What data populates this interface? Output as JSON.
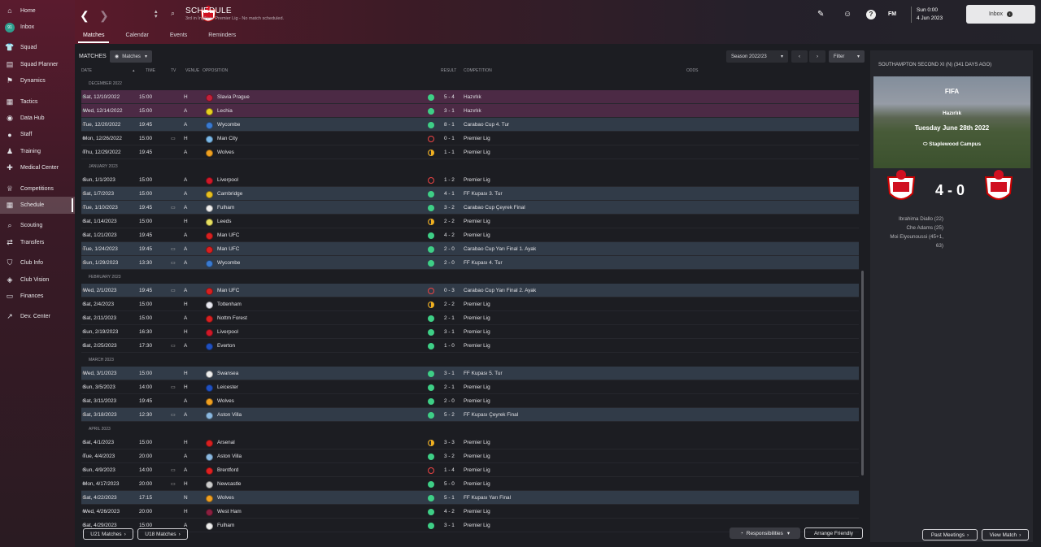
{
  "sidebar": {
    "items": [
      {
        "label": "Home",
        "icon": "home-icon",
        "glyph": "⌂"
      },
      {
        "label": "Inbox",
        "icon": "inbox-icon",
        "glyph": "91",
        "badge": true
      },
      {
        "label": "Squad",
        "icon": "squad-icon",
        "glyph": "👕"
      },
      {
        "label": "Squad Planner",
        "icon": "squad-planner-icon",
        "glyph": "▤"
      },
      {
        "label": "Dynamics",
        "icon": "dynamics-icon",
        "glyph": "⚑"
      },
      {
        "label": "Tactics",
        "icon": "tactics-icon",
        "glyph": "▦"
      },
      {
        "label": "Data Hub",
        "icon": "data-hub-icon",
        "glyph": "◉"
      },
      {
        "label": "Staff",
        "icon": "staff-icon",
        "glyph": "●"
      },
      {
        "label": "Training",
        "icon": "training-icon",
        "glyph": "♟"
      },
      {
        "label": "Medical Center",
        "icon": "medical-icon",
        "glyph": "✚"
      },
      {
        "label": "Competitions",
        "icon": "trophy-icon",
        "glyph": "♕"
      },
      {
        "label": "Schedule",
        "icon": "calendar-icon",
        "glyph": "▦",
        "active": true
      },
      {
        "label": "Scouting",
        "icon": "scouting-icon",
        "glyph": "⌕"
      },
      {
        "label": "Transfers",
        "icon": "transfers-icon",
        "glyph": "⇄"
      },
      {
        "label": "Club Info",
        "icon": "shield-icon",
        "glyph": "⛉"
      },
      {
        "label": "Club Vision",
        "icon": "vision-icon",
        "glyph": "◈"
      },
      {
        "label": "Finances",
        "icon": "finances-icon",
        "glyph": "▭"
      },
      {
        "label": "Dev. Center",
        "icon": "dev-center-icon",
        "glyph": "↗"
      }
    ]
  },
  "header": {
    "title": "SCHEDULE",
    "subtitle": "3rd in İngiltere Premier Lig - No match scheduled.",
    "tabs": [
      "Matches",
      "Calendar",
      "Events",
      "Reminders"
    ],
    "date_time": "Sun 0:00",
    "date": "4 Jun 2023",
    "inbox_label": "Inbox",
    "fm_label": "FM"
  },
  "toolbar": {
    "matches_label": "MATCHES",
    "matches_dropdown": "Matches",
    "season": "Season 2022/23",
    "filter": "Filter"
  },
  "columns": {
    "date": "DATE",
    "time": "TIME",
    "tv": "TV",
    "venue": "VENUE",
    "opposition": "OPPOSITION",
    "result": "RESULT",
    "competition": "COMPETITION",
    "odds": "ODDS"
  },
  "groups": [
    {
      "month": "DECEMBER 2022",
      "matches": [
        {
          "date": "Sat, 12/10/2022",
          "time": "15:00",
          "tv": false,
          "venue": "H",
          "opp": "Slavia Prague",
          "result": "5 - 4",
          "outcome": "win",
          "comp": "Hazırlık",
          "hl": "purple",
          "color": "#c4203a"
        },
        {
          "date": "Wed, 12/14/2022",
          "time": "15:00",
          "tv": false,
          "venue": "A",
          "opp": "Lechia",
          "result": "3 - 1",
          "outcome": "win",
          "comp": "Hazırlık",
          "hl": "purple",
          "color": "#e8d020"
        },
        {
          "date": "Tue, 12/20/2022",
          "time": "19:45",
          "tv": false,
          "venue": "A",
          "opp": "Wycombe",
          "result": "8 - 1",
          "outcome": "win",
          "comp": "Carabao Cup 4. Tur",
          "hl": "blue",
          "color": "#3a7ad0"
        },
        {
          "date": "Mon, 12/26/2022",
          "time": "15:00",
          "tv": true,
          "venue": "H",
          "opp": "Man City",
          "result": "0 - 1",
          "outcome": "loss",
          "comp": "Premier Lig",
          "hl": "",
          "color": "#7ab8e8"
        },
        {
          "date": "Thu, 12/29/2022",
          "time": "19:45",
          "tv": false,
          "venue": "A",
          "opp": "Wolves",
          "result": "1 - 1",
          "outcome": "draw",
          "comp": "Premier Lig",
          "hl": "",
          "color": "#f0a020"
        }
      ]
    },
    {
      "month": "JANUARY 2023",
      "matches": [
        {
          "date": "Sun, 1/1/2023",
          "time": "15:00",
          "tv": false,
          "venue": "A",
          "opp": "Liverpool",
          "result": "1 - 2",
          "outcome": "loss",
          "comp": "Premier Lig",
          "hl": "",
          "color": "#d01828"
        },
        {
          "date": "Sat, 1/7/2023",
          "time": "15:00",
          "tv": false,
          "venue": "A",
          "opp": "Cambridge",
          "result": "4 - 1",
          "outcome": "win",
          "comp": "FF Kupası 3. Tur",
          "hl": "blue",
          "color": "#e8c020"
        },
        {
          "date": "Tue, 1/10/2023",
          "time": "19:45",
          "tv": true,
          "venue": "A",
          "opp": "Fulham",
          "result": "3 - 2",
          "outcome": "win",
          "comp": "Carabao Cup Çeyrek Final",
          "hl": "blue",
          "color": "#eeeeee"
        },
        {
          "date": "Sat, 1/14/2023",
          "time": "15:00",
          "tv": false,
          "venue": "H",
          "opp": "Leeds",
          "result": "2 - 2",
          "outcome": "draw",
          "comp": "Premier Lig",
          "hl": "",
          "color": "#e8e060"
        },
        {
          "date": "Sat, 1/21/2023",
          "time": "19:45",
          "tv": false,
          "venue": "A",
          "opp": "Man UFC",
          "result": "4 - 2",
          "outcome": "win",
          "comp": "Premier Lig",
          "hl": "",
          "color": "#d82020"
        },
        {
          "date": "Tue, 1/24/2023",
          "time": "19:45",
          "tv": true,
          "venue": "A",
          "opp": "Man UFC",
          "result": "2 - 0",
          "outcome": "win",
          "comp": "Carabao Cup Yarı Final 1. Ayak",
          "hl": "blue",
          "color": "#d82020"
        },
        {
          "date": "Sun, 1/29/2023",
          "time": "13:30",
          "tv": true,
          "venue": "A",
          "opp": "Wycombe",
          "result": "2 - 0",
          "outcome": "win",
          "comp": "FF Kupası 4. Tur",
          "hl": "blue",
          "color": "#3a7ad0"
        }
      ]
    },
    {
      "month": "FEBRUARY 2023",
      "matches": [
        {
          "date": "Wed, 2/1/2023",
          "time": "19:45",
          "tv": true,
          "venue": "A",
          "opp": "Man UFC",
          "result": "0 - 3",
          "outcome": "loss",
          "comp": "Carabao Cup Yarı Final 2. Ayak",
          "hl": "blue",
          "color": "#d82020"
        },
        {
          "date": "Sat, 2/4/2023",
          "time": "15:00",
          "tv": false,
          "venue": "H",
          "opp": "Tottenham",
          "result": "2 - 2",
          "outcome": "draw",
          "comp": "Premier Lig",
          "hl": "",
          "color": "#e8e8f0"
        },
        {
          "date": "Sat, 2/11/2023",
          "time": "15:00",
          "tv": false,
          "venue": "A",
          "opp": "Nottm Forest",
          "result": "2 - 1",
          "outcome": "win",
          "comp": "Premier Lig",
          "hl": "",
          "color": "#d82020"
        },
        {
          "date": "Sun, 2/19/2023",
          "time": "16:30",
          "tv": false,
          "venue": "H",
          "opp": "Liverpool",
          "result": "3 - 1",
          "outcome": "win",
          "comp": "Premier Lig",
          "hl": "",
          "color": "#d01828"
        },
        {
          "date": "Sat, 2/25/2023",
          "time": "17:30",
          "tv": true,
          "venue": "A",
          "opp": "Everton",
          "result": "1 - 0",
          "outcome": "win",
          "comp": "Premier Lig",
          "hl": "",
          "color": "#2050c0"
        }
      ]
    },
    {
      "month": "MARCH 2023",
      "matches": [
        {
          "date": "Wed, 3/1/2023",
          "time": "15:00",
          "tv": false,
          "venue": "H",
          "opp": "Swansea",
          "result": "3 - 1",
          "outcome": "win",
          "comp": "FF Kupası 5. Tur",
          "hl": "blue",
          "color": "#eeeeee"
        },
        {
          "date": "Sun, 3/5/2023",
          "time": "14:00",
          "tv": true,
          "venue": "H",
          "opp": "Leicester",
          "result": "2 - 1",
          "outcome": "win",
          "comp": "Premier Lig",
          "hl": "",
          "color": "#2050c0"
        },
        {
          "date": "Sat, 3/11/2023",
          "time": "19:45",
          "tv": false,
          "venue": "A",
          "opp": "Wolves",
          "result": "2 - 0",
          "outcome": "win",
          "comp": "Premier Lig",
          "hl": "",
          "color": "#f0a020"
        },
        {
          "date": "Sat, 3/18/2023",
          "time": "12:30",
          "tv": true,
          "venue": "A",
          "opp": "Aston Villa",
          "result": "5 - 2",
          "outcome": "win",
          "comp": "FF Kupası Çeyrek Final",
          "hl": "blue",
          "color": "#8ab8e0"
        }
      ]
    },
    {
      "month": "APRIL 2023",
      "matches": [
        {
          "date": "Sat, 4/1/2023",
          "time": "15:00",
          "tv": false,
          "venue": "H",
          "opp": "Arsenal",
          "result": "3 - 3",
          "outcome": "draw",
          "comp": "Premier Lig",
          "hl": "",
          "color": "#d82020"
        },
        {
          "date": "Tue, 4/4/2023",
          "time": "20:00",
          "tv": false,
          "venue": "A",
          "opp": "Aston Villa",
          "result": "3 - 2",
          "outcome": "win",
          "comp": "Premier Lig",
          "hl": "",
          "color": "#8ab8e0"
        },
        {
          "date": "Sun, 4/9/2023",
          "time": "14:00",
          "tv": true,
          "venue": "A",
          "opp": "Brentford",
          "result": "1 - 4",
          "outcome": "loss",
          "comp": "Premier Lig",
          "hl": "",
          "color": "#e02020"
        },
        {
          "date": "Mon, 4/17/2023",
          "time": "20:00",
          "tv": true,
          "venue": "H",
          "opp": "Newcastle",
          "result": "5 - 0",
          "outcome": "win",
          "comp": "Premier Lig",
          "hl": "",
          "color": "#cccccc"
        },
        {
          "date": "Sat, 4/22/2023",
          "time": "17:15",
          "tv": false,
          "venue": "N",
          "opp": "Wolves",
          "result": "5 - 1",
          "outcome": "win",
          "comp": "FF Kupası Yarı Final",
          "hl": "blue",
          "color": "#f0a020"
        },
        {
          "date": "Wed, 4/26/2023",
          "time": "20:00",
          "tv": false,
          "venue": "H",
          "opp": "West Ham",
          "result": "4 - 2",
          "outcome": "win",
          "comp": "Premier Lig",
          "hl": "",
          "color": "#8a2040"
        },
        {
          "date": "Sat, 4/29/2023",
          "time": "15:00",
          "tv": false,
          "venue": "A",
          "opp": "Fulham",
          "result": "3 - 1",
          "outcome": "win",
          "comp": "Premier Lig",
          "hl": "",
          "color": "#eeeeee"
        }
      ]
    }
  ],
  "bottom": {
    "u21": "U21 Matches",
    "u18": "U18 Matches",
    "responsibilities": "Responsibilities",
    "arrange": "Arrange Friendly"
  },
  "panel": {
    "title": "SOUTHAMPTON SECOND XI (N) (341 DAYS AGO)",
    "fifa": "FIFA",
    "competition": "Hazırlık",
    "date": "Tuesday June 28th 2022",
    "venue": "Staplewood Campus",
    "score": "4 - 0",
    "scorers": [
      "Ibrahima Diallo (22)",
      "Che Adams (25)",
      "Moi Elyounoussi (45+1,",
      "63)"
    ],
    "past_meetings": "Past Meetings",
    "view_match": "View Match"
  }
}
